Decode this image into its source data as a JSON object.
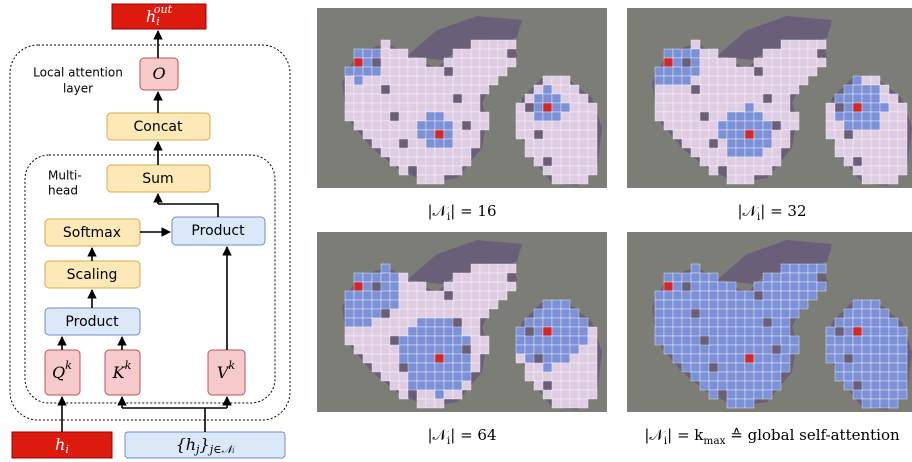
{
  "diagram": {
    "output": [
      {
        "text": "h"
      },
      {
        "sub": "i"
      },
      {
        "sup": "out"
      }
    ],
    "layer_label": [
      "Local attention",
      "layer"
    ],
    "multihead_label": [
      "Multi-",
      "head"
    ],
    "blocks": {
      "o": [
        {
          "text": "O"
        }
      ],
      "concat": [
        {
          "text": "Concat"
        }
      ],
      "sum": [
        {
          "text": "Sum"
        }
      ],
      "softmax": [
        {
          "text": "Softmax"
        }
      ],
      "product_right": [
        {
          "text": "Product"
        }
      ],
      "scaling": [
        {
          "text": "Scaling"
        }
      ],
      "product_left": [
        {
          "text": "Product"
        }
      ],
      "q": [
        {
          "text": "Q"
        },
        {
          "sup": "k"
        }
      ],
      "k": [
        {
          "text": "K"
        },
        {
          "sup": "k"
        }
      ],
      "v": [
        {
          "text": "V"
        },
        {
          "sup": "k"
        }
      ]
    },
    "inputs": {
      "h_i": [
        {
          "text": "h"
        },
        {
          "sub": "i"
        }
      ],
      "h_j": [
        {
          "text": "{h"
        },
        {
          "sub": "j"
        },
        {
          "text": "}"
        },
        {
          "sub": "j∈𝒩ᵢ"
        }
      ]
    }
  },
  "panels": [
    {
      "caption": [
        {
          "text": "|𝒩"
        },
        {
          "sub": "i"
        },
        {
          "text": "| = 16"
        }
      ]
    },
    {
      "caption": [
        {
          "text": "|𝒩"
        },
        {
          "sub": "i"
        },
        {
          "text": "| = 32"
        }
      ]
    },
    {
      "caption": [
        {
          "text": "|𝒩"
        },
        {
          "sub": "i"
        },
        {
          "text": "| = 64"
        }
      ]
    },
    {
      "caption": [
        {
          "text": "|𝒩"
        },
        {
          "sub": "i"
        },
        {
          "text": "| = k"
        },
        {
          "sub": "max"
        },
        {
          "text": " ≙ global self-attention"
        }
      ]
    }
  ]
}
